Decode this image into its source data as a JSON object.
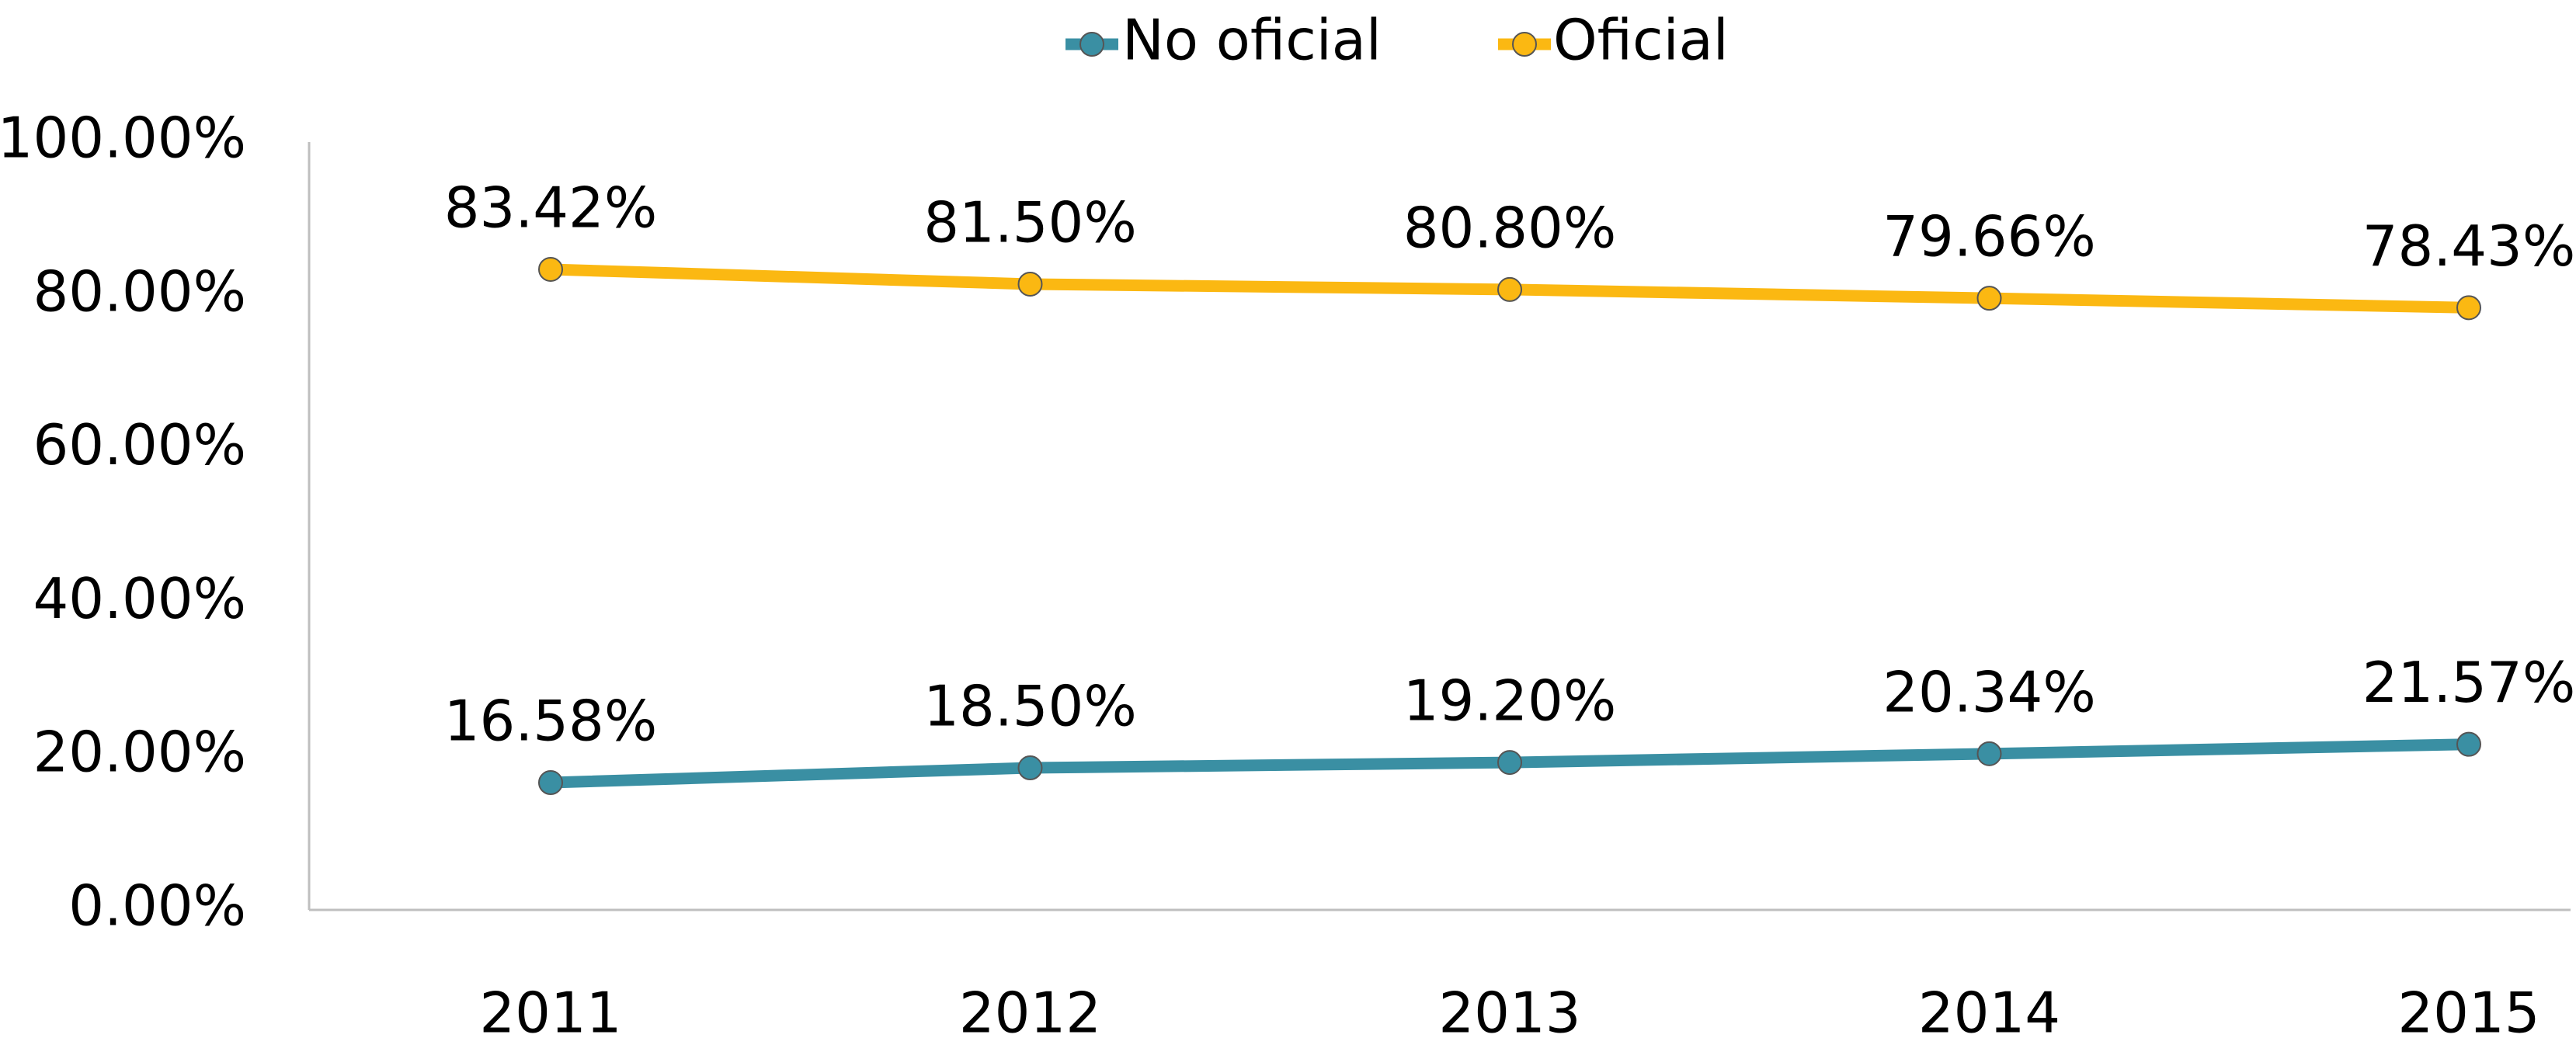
{
  "chart_data": {
    "type": "line",
    "categories": [
      "2011",
      "2012",
      "2013",
      "2014",
      "2015"
    ],
    "series": [
      {
        "name": "No oficial",
        "color": "#3a8fa3",
        "values": [
          16.58,
          18.5,
          19.2,
          20.34,
          21.57
        ],
        "value_labels": [
          "16.58%",
          "18.50%",
          "19.20%",
          "20.34%",
          "21.57%"
        ]
      },
      {
        "name": "Oficial",
        "color": "#fbb812",
        "values": [
          83.42,
          81.5,
          80.8,
          79.66,
          78.43
        ],
        "value_labels": [
          "83.42%",
          "81.50%",
          "80.80%",
          "79.66%",
          "78.43%"
        ]
      }
    ],
    "ylim": [
      0,
      100
    ],
    "yticks": [
      {
        "value": 0,
        "label": "0.00%"
      },
      {
        "value": 20,
        "label": "20.00%"
      },
      {
        "value": 40,
        "label": "40.00%"
      },
      {
        "value": 60,
        "label": "60.00%"
      },
      {
        "value": 80,
        "label": "80.00%"
      },
      {
        "value": 100,
        "label": "100.00%"
      }
    ],
    "grid": false,
    "legend": "top"
  }
}
